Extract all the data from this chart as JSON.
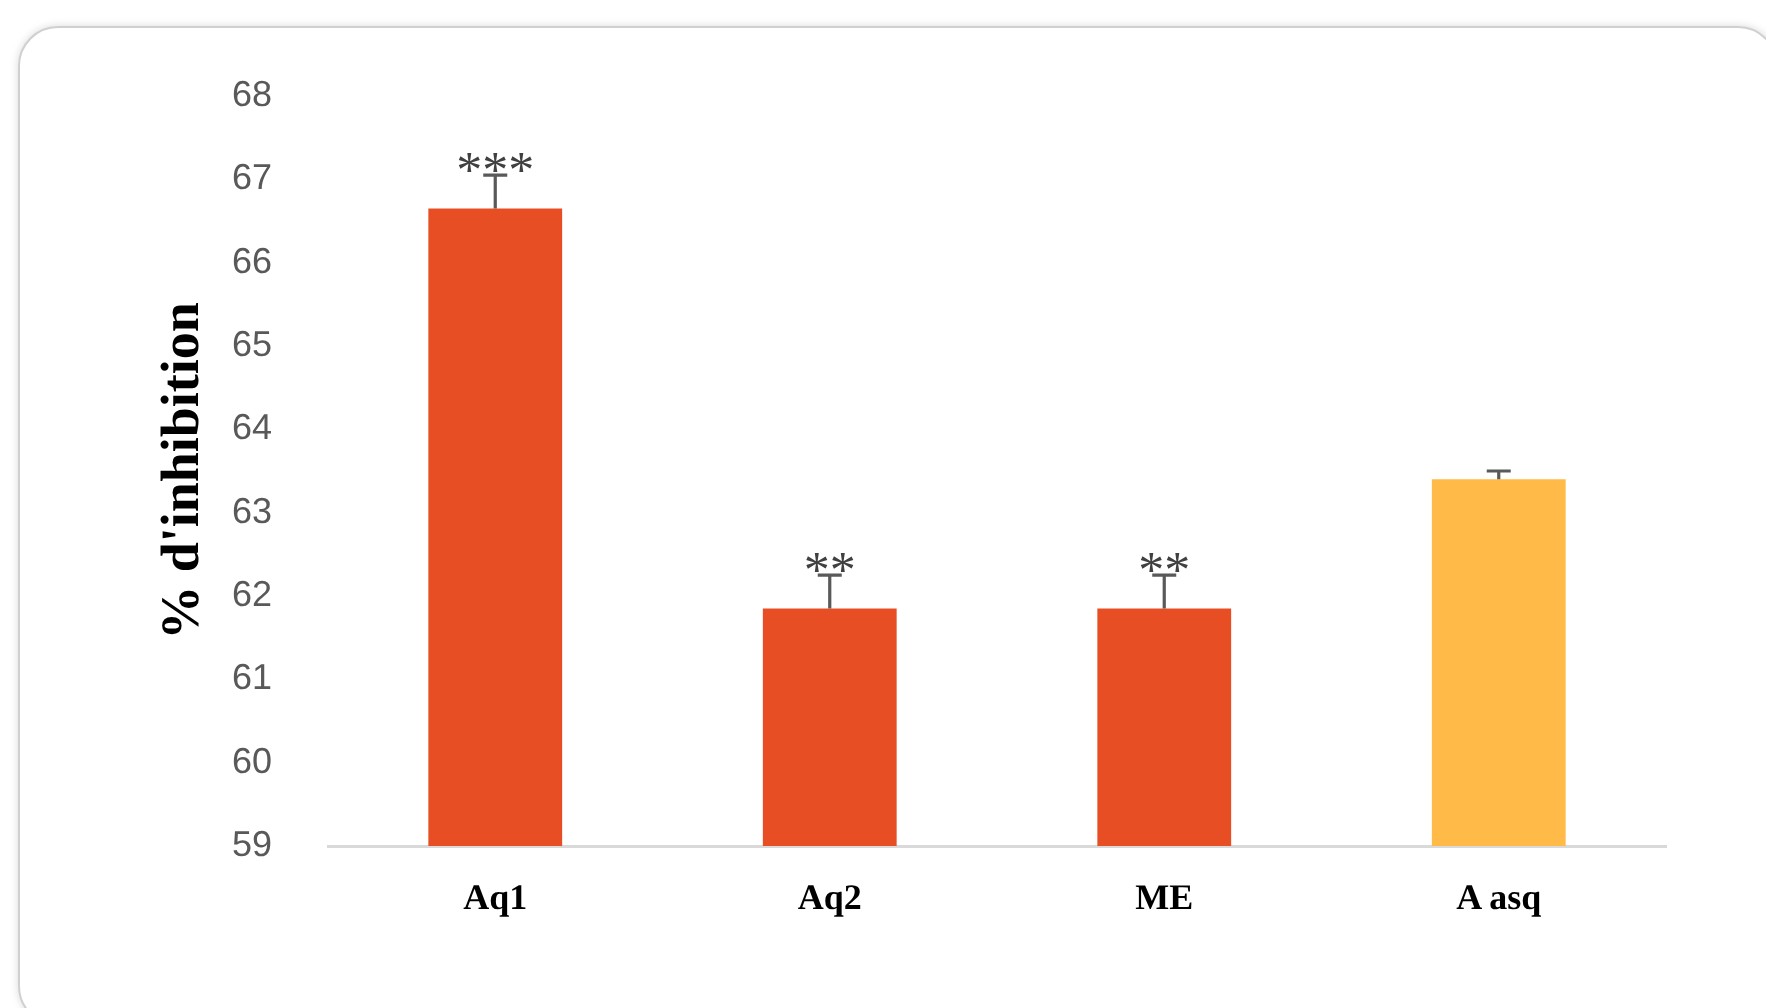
{
  "chart_data": {
    "type": "bar",
    "ylabel": "% d'inhibition",
    "categories": [
      "Aq1",
      "Aq2",
      "ME",
      "A asq"
    ],
    "values": [
      66.65,
      61.85,
      61.85,
      63.4
    ],
    "colors": [
      "#e84e24",
      "#e84e24",
      "#e84e24",
      "#ffba48"
    ],
    "errors": [
      [
        66.65,
        67.05
      ],
      [
        61.85,
        62.25
      ],
      [
        61.85,
        62.25
      ],
      [
        63.4,
        63.5
      ]
    ],
    "ylim": [
      59,
      68
    ],
    "yticks": [
      59,
      60,
      61,
      62,
      63,
      64,
      65,
      66,
      67,
      68
    ],
    "annotations": [
      {
        "text": "***",
        "x": "Aq1",
        "y": 66.65
      },
      {
        "text": "**",
        "x": "Aq2",
        "y": 61.85
      },
      {
        "text": "**",
        "x": "ME",
        "y": 61.85
      }
    ]
  }
}
